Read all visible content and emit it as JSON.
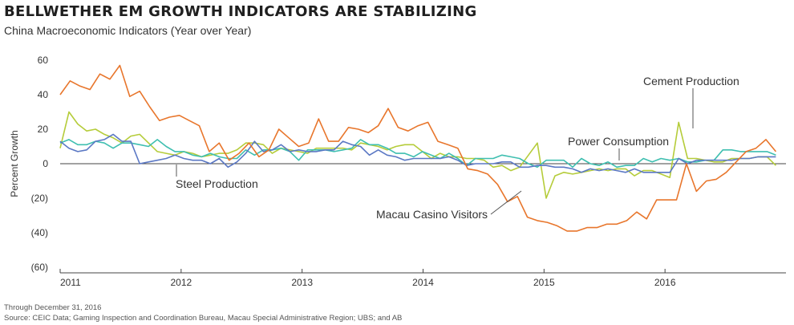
{
  "title": "BELLWETHER EM GROWTH INDICATORS ARE STABILIZING",
  "subtitle": "China Macroeconomic Indicators (Year over Year)",
  "footnote": "Through December 31, 2016",
  "source": "Source: CEIC Data; Gaming Inspection and Coordination Bureau, Macau Special Administrative Region; UBS; and AB",
  "chart_data": {
    "type": "line",
    "title": "BELLWETHER EM GROWTH INDICATORS ARE STABILIZING",
    "subtitle": "China Macroeconomic Indicators (Year over Year)",
    "xlabel": "",
    "ylabel": "Percent Growth",
    "x_start_year": 2011,
    "x_end": "2016-12",
    "xlim": [
      2011,
      2017
    ],
    "ylim": [
      -60,
      60
    ],
    "y_ticks": [
      60,
      40,
      20,
      0,
      -20,
      -40,
      -60
    ],
    "y_tick_labels": [
      "60",
      "40",
      "20",
      "0",
      "(20)",
      "(40)",
      "(60)"
    ],
    "x_ticks": [
      2011,
      2012,
      2013,
      2014,
      2015,
      2016
    ],
    "x_tick_labels": [
      "2011",
      "2012",
      "2013",
      "2014",
      "2015",
      "2016"
    ],
    "grid": false,
    "legend": "inline annotations",
    "series": [
      {
        "name": "Cement Production",
        "color": "#b5cc3a",
        "values": [
          9,
          30,
          23,
          19,
          20,
          17,
          15,
          12,
          16,
          17,
          12,
          7,
          6,
          5,
          7,
          6,
          4,
          5,
          6,
          6,
          8,
          12,
          12,
          11,
          6,
          9,
          8,
          7,
          6,
          9,
          9,
          9,
          9,
          8,
          12,
          11,
          10,
          8,
          10,
          11,
          11,
          7,
          3,
          6,
          4,
          4,
          3,
          3,
          2,
          -2,
          -1,
          -4,
          -2,
          5,
          12,
          -20,
          -7,
          -5,
          -6,
          -5,
          -4,
          -3,
          -4,
          -3,
          -3,
          -7,
          -4,
          -4,
          -6,
          -8,
          24,
          3,
          3,
          2,
          1,
          1,
          3,
          3,
          3,
          4,
          4,
          -1
        ]
      },
      {
        "name": "Power Consumption",
        "color": "#3fbfb0",
        "values": [
          12,
          14,
          11,
          11,
          13,
          12,
          9,
          12,
          12,
          11,
          10,
          14,
          10,
          7,
          7,
          5,
          4,
          6,
          4,
          3,
          3,
          8,
          5,
          8,
          8,
          9,
          7,
          2,
          8,
          8,
          8,
          7,
          8,
          9,
          14,
          11,
          11,
          9,
          6,
          6,
          4,
          7,
          5,
          3,
          6,
          3,
          -1,
          3,
          3,
          3,
          5,
          4,
          3,
          0,
          -2,
          2,
          2,
          2,
          -2,
          3,
          0,
          -1,
          1,
          -2,
          -1,
          -1,
          3,
          1,
          3,
          2,
          3,
          1,
          1,
          2,
          2,
          8,
          8,
          7,
          7,
          7,
          7,
          5
        ]
      },
      {
        "name": "Steel Production",
        "color": "#5b78c4",
        "values": [
          13,
          9,
          7,
          8,
          13,
          14,
          17,
          13,
          13,
          0,
          1,
          2,
          3,
          5,
          3,
          2,
          2,
          0,
          3,
          -2,
          1,
          6,
          13,
          7,
          8,
          11,
          7,
          8,
          7,
          7,
          8,
          8,
          13,
          11,
          10,
          5,
          8,
          5,
          4,
          2,
          3,
          3,
          3,
          3,
          4,
          2,
          -1,
          0,
          0,
          0,
          1,
          1,
          -2,
          -2,
          -1,
          -1,
          -2,
          -2,
          -3,
          -5,
          -3,
          -4,
          -3,
          -4,
          -5,
          -3,
          -5,
          -5,
          -5,
          -5,
          3,
          0,
          2,
          2,
          2,
          2,
          2,
          3,
          3,
          4,
          4,
          4
        ]
      },
      {
        "name": "Macau Casino Visitors",
        "color": "#e8762c",
        "values": [
          40,
          48,
          45,
          43,
          52,
          49,
          57,
          39,
          42,
          33,
          25,
          27,
          28,
          25,
          22,
          7,
          12,
          2,
          6,
          12,
          4,
          8,
          20,
          15,
          10,
          12,
          26,
          13,
          13,
          21,
          20,
          18,
          22,
          32,
          21,
          19,
          22,
          24,
          13,
          11,
          9,
          -3,
          -4,
          -6,
          -12,
          -22,
          -19,
          -31,
          -33,
          -34,
          -36,
          -39,
          -39,
          -37,
          -37,
          -35,
          -35,
          -33,
          -28,
          -32,
          -21,
          -21,
          -21,
          0,
          -16,
          -10,
          -9,
          -5,
          1,
          7,
          9,
          14,
          7
        ]
      }
    ],
    "annotations": [
      {
        "text": "Cement Production",
        "series": "Cement Production"
      },
      {
        "text": "Power Consumption",
        "series": "Power Consumption"
      },
      {
        "text": "Steel Production",
        "series": "Steel Production"
      },
      {
        "text": "Macau Casino Visitors",
        "series": "Macau Casino Visitors"
      }
    ]
  }
}
